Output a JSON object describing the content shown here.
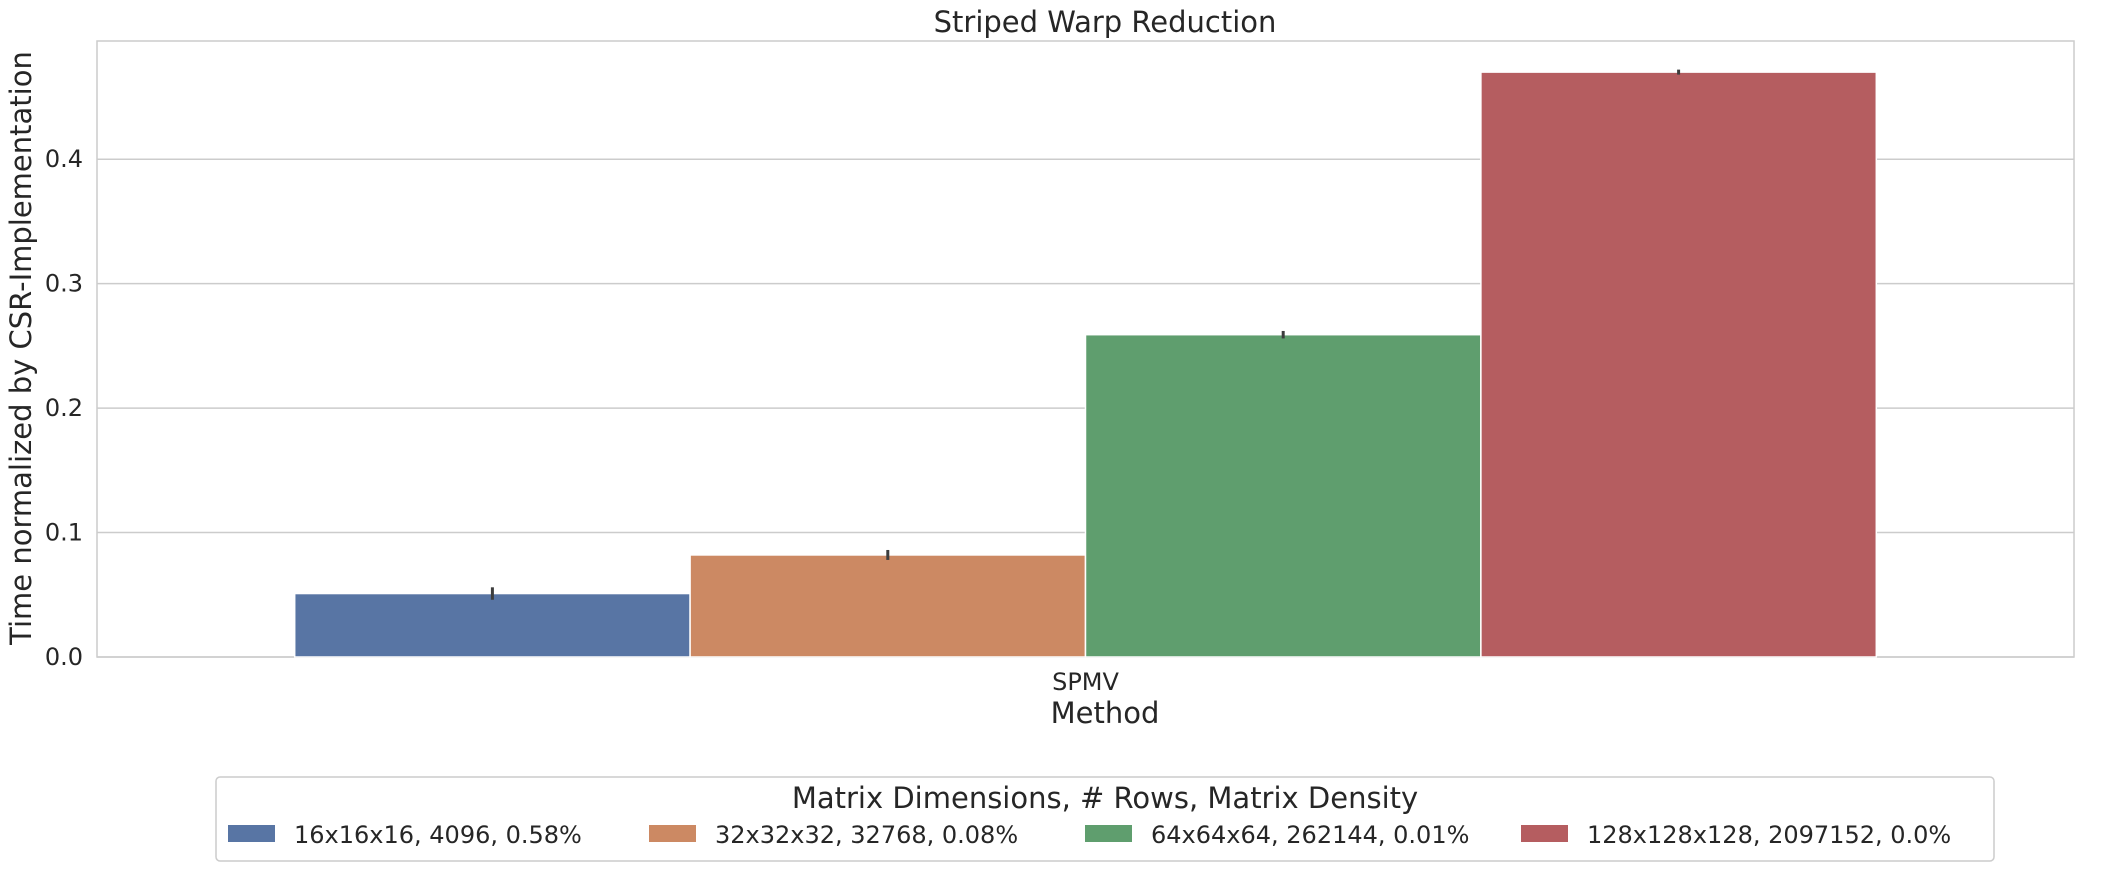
{
  "chart_data": {
    "type": "bar",
    "title": "Striped Warp Reduction",
    "xlabel": "Method",
    "ylabel": "Time normalized by CSR-Implementation",
    "categories": [
      "SPMV"
    ],
    "ylim": [
      0,
      0.495
    ],
    "yticks": [
      0.0,
      0.1,
      0.2,
      0.3,
      0.4
    ],
    "ytick_labels": [
      "0.0",
      "0.1",
      "0.2",
      "0.3",
      "0.4"
    ],
    "grid": true,
    "legend": {
      "title": "Matrix Dimensions, # Rows, Matrix Density",
      "placement": "bottom-center"
    },
    "series": [
      {
        "name": "16x16x16, 4096, 0.58%",
        "values": [
          0.051
        ],
        "err": [
          0.005
        ],
        "color": "#5875a4"
      },
      {
        "name": "32x32x32, 32768, 0.08%",
        "values": [
          0.082
        ],
        "err": [
          0.004
        ],
        "color": "#cc8963"
      },
      {
        "name": "64x64x64, 262144, 0.01%",
        "values": [
          0.259
        ],
        "err": [
          0.003
        ],
        "color": "#5f9e6e"
      },
      {
        "name": "128x128x128, 2097152, 0.0%",
        "values": [
          0.47
        ],
        "err": [
          0.002
        ],
        "color": "#b55d60"
      }
    ]
  }
}
